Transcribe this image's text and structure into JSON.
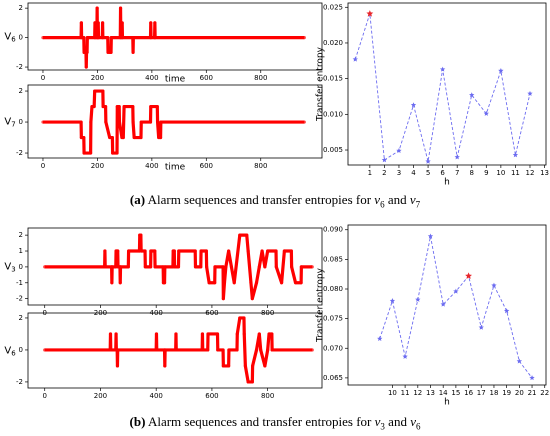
{
  "chart_data": [
    {
      "type": "stem",
      "ylabel": {
        "name": "V",
        "sub": "6"
      },
      "xlabel": "time",
      "color": "#ff0000",
      "x": [
        0,
        140,
        141,
        142,
        150,
        151,
        152,
        158,
        159,
        160,
        162,
        163,
        164,
        190,
        191,
        192,
        198,
        199,
        200,
        202,
        203,
        204,
        218,
        219,
        220,
        238,
        239,
        246,
        247,
        250,
        251,
        252,
        284,
        285,
        286,
        290,
        291,
        292,
        330,
        331,
        332,
        395,
        396,
        397,
        410,
        411,
        412,
        960
      ],
      "values": [
        0,
        0,
        1,
        0,
        0,
        -1,
        -1,
        -1,
        -2,
        -1,
        -1,
        0,
        0,
        0,
        1,
        0,
        0,
        2,
        0,
        0,
        1,
        0,
        0,
        1,
        0,
        0,
        -1,
        -1,
        -1,
        -1,
        0,
        0,
        0,
        2,
        0,
        0,
        1,
        0,
        0,
        -1,
        0,
        0,
        1,
        0,
        0,
        1,
        0,
        0
      ],
      "xlim": [
        -55,
        1025
      ],
      "ylim": [
        -2.2,
        2.35
      ],
      "xticks": [
        0,
        200,
        400,
        600,
        800
      ],
      "yticks": [
        -2,
        0,
        2
      ]
    },
    {
      "type": "stem",
      "ylabel": {
        "name": "V",
        "sub": "7"
      },
      "xlabel": "time",
      "color": "#ff0000",
      "x": [
        0,
        140,
        141,
        150,
        151,
        175,
        176,
        180,
        188,
        190,
        220,
        221,
        230,
        231,
        245,
        255,
        256,
        272,
        273,
        280,
        281,
        290,
        295,
        298,
        330,
        331,
        335,
        360,
        361,
        395,
        396,
        420,
        421,
        425,
        432,
        433,
        960
      ],
      "values": [
        0,
        0,
        -1,
        -1,
        -2,
        -2,
        0,
        1,
        1,
        2,
        2,
        1,
        1,
        0,
        -1,
        -1,
        -2,
        -2,
        1,
        1,
        0,
        -1,
        -1,
        1,
        1,
        0,
        -1,
        -1,
        0,
        0,
        1,
        1,
        0,
        -1,
        -1,
        0,
        0
      ],
      "xlim": [
        -55,
        1025
      ],
      "ylim": [
        -2.32,
        2.39
      ],
      "xticks": [
        0,
        200,
        400,
        600,
        800
      ],
      "yticks": [
        -2,
        0,
        2
      ]
    },
    {
      "type": "line",
      "xlabel": "h",
      "ylabel": "Transfer entropy",
      "color": "#6b6bf0",
      "highlight_index": 1,
      "highlight_color": "#e8262b",
      "x": [
        0,
        1,
        2,
        3,
        4,
        5,
        6,
        7,
        8,
        9,
        10,
        11,
        12
      ],
      "values": [
        0.0177,
        0.0241,
        0.0036,
        0.0049,
        0.0113,
        0.0034,
        0.0163,
        0.004,
        0.0127,
        0.0101,
        0.0161,
        0.0043,
        0.0129
      ],
      "xlim": [
        -0.5,
        13.1
      ],
      "ylim": [
        0.0029,
        0.0256
      ],
      "xticks": [
        1,
        2,
        3,
        4,
        5,
        6,
        7,
        8,
        9,
        10,
        11,
        12,
        13
      ],
      "yticks": [
        0.005,
        {
          "value": 0.01,
          "label": "0.010"
        },
        0.015,
        {
          "value": 0.02,
          "label": "0.020"
        },
        0.025
      ]
    },
    {
      "type": "stem",
      "ylabel": {
        "name": "V",
        "sub": "3"
      },
      "color": "#ff0000",
      "x": [
        0,
        215,
        216,
        217,
        240,
        241,
        242,
        255,
        256,
        262,
        263,
        270,
        271,
        272,
        300,
        301,
        340,
        341,
        345,
        346,
        360,
        361,
        380,
        381,
        395,
        396,
        425,
        426,
        430,
        431,
        460,
        461,
        465,
        466,
        480,
        481,
        540,
        541,
        560,
        561,
        580,
        581,
        590,
        610,
        611,
        640,
        641,
        645,
        650,
        660,
        670,
        680,
        700,
        725,
        730,
        740,
        745,
        760,
        770,
        780,
        790,
        800,
        830,
        831,
        850,
        860,
        885,
        886,
        900,
        920,
        921,
        960
      ],
      "values": [
        0,
        0,
        1,
        0,
        0,
        -1,
        0,
        0,
        1,
        1,
        0,
        0,
        -1,
        0,
        0,
        1,
        1,
        2,
        2,
        1,
        1,
        0,
        0,
        1,
        1,
        0,
        0,
        -1,
        -1,
        0,
        0,
        1,
        1,
        0,
        0,
        1,
        1,
        0,
        0,
        1,
        1,
        0,
        -1,
        -1,
        0,
        0,
        -2,
        -1,
        0,
        1,
        0,
        -1,
        2,
        2,
        1,
        -1,
        -2,
        -1,
        0,
        1,
        0,
        1,
        1,
        0,
        -1,
        1,
        1,
        0,
        -1,
        -1,
        0,
        0
      ],
      "xlim": [
        -60,
        995
      ],
      "ylim": [
        -2.4,
        2.45
      ],
      "xticks": [
        0,
        200,
        400,
        600,
        800
      ],
      "yticks": [
        -2,
        -1,
        0,
        1,
        2
      ]
    },
    {
      "type": "stem",
      "ylabel": {
        "name": "V",
        "sub": "6"
      },
      "color": "#ff0000",
      "x": [
        0,
        235,
        236,
        237,
        255,
        256,
        257,
        260,
        261,
        262,
        400,
        401,
        402,
        430,
        431,
        432,
        470,
        471,
        472,
        565,
        566,
        567,
        585,
        586,
        620,
        621,
        640,
        641,
        660,
        661,
        690,
        691,
        700,
        715,
        716,
        720,
        730,
        745,
        746,
        760,
        770,
        775,
        790,
        800,
        805,
        815,
        816,
        960
      ],
      "values": [
        0,
        0,
        1,
        0,
        0,
        1,
        0,
        0,
        -1,
        0,
        0,
        1,
        0,
        0,
        -1,
        0,
        0,
        1,
        0,
        0,
        1,
        0,
        0,
        1,
        1,
        0,
        0,
        -1,
        -1,
        0,
        0,
        1,
        2,
        2,
        1,
        -1,
        -2,
        -2,
        -1,
        0,
        1,
        0,
        -1,
        0,
        1,
        1,
        0,
        0
      ],
      "xlim": [
        -60,
        995
      ],
      "ylim": [
        -2.38,
        2.31
      ],
      "xticks": [
        0,
        200,
        400,
        600,
        800
      ],
      "yticks": [
        -2,
        0,
        2
      ]
    },
    {
      "type": "line",
      "xlabel": "h",
      "ylabel": "Transfer entropy",
      "color": "#6b6bf0",
      "highlight_index": 7,
      "highlight_color": "#e8262b",
      "x": [
        9,
        10,
        11,
        12,
        13,
        14,
        15,
        16,
        17,
        18,
        19,
        20,
        21
      ],
      "values": [
        0.0716,
        0.078,
        0.0686,
        0.0782,
        0.0889,
        0.0774,
        0.0796,
        0.0822,
        0.0735,
        0.0806,
        0.0763,
        0.0678,
        0.065
      ],
      "xlim": [
        6.5,
        22.1
      ],
      "ylim": [
        0.0638,
        0.0908
      ],
      "xticks": [
        10,
        11,
        12,
        13,
        14,
        15,
        16,
        17,
        18,
        19,
        20,
        21,
        22
      ],
      "yticks": [
        0.065,
        {
          "value": 0.07,
          "label": "0.070"
        },
        0.075,
        {
          "value": 0.08,
          "label": "0.080"
        },
        0.085,
        {
          "value": 0.09,
          "label": "0.090"
        }
      ]
    }
  ],
  "captions": [
    {
      "label": "(a)",
      "text": "Alarm sequences and transfer entropies for",
      "var1": {
        "name": "v",
        "sub": "6"
      },
      "conj": "and",
      "var2": {
        "name": "v",
        "sub": "7"
      }
    },
    {
      "label": "(b)",
      "text": "Alarm sequences and transfer entropies for",
      "var1": {
        "name": "v",
        "sub": "3"
      },
      "conj": "and",
      "var2": {
        "name": "v",
        "sub": "6"
      }
    }
  ]
}
